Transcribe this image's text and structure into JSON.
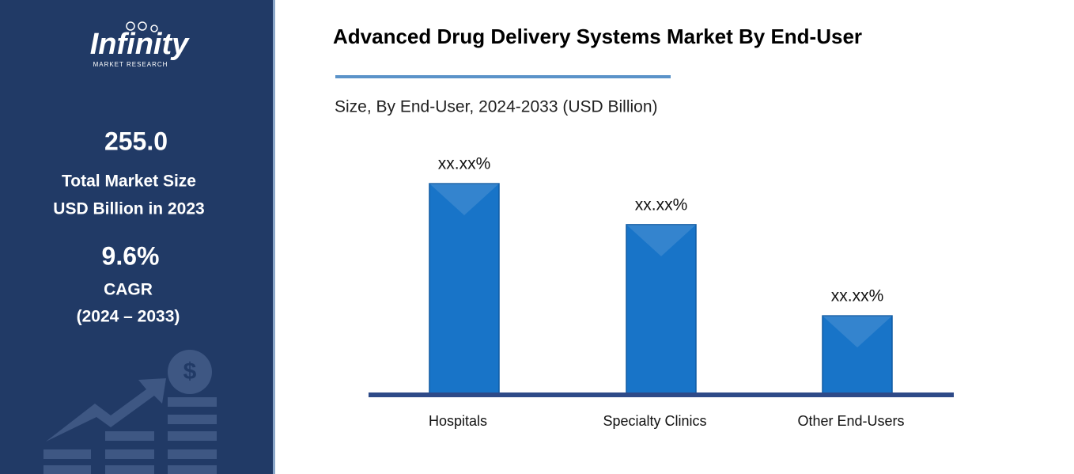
{
  "sidebar": {
    "logo": "Infinity",
    "logo_sub": "MARKET RESEARCH",
    "market_size": "255.0",
    "market_size_label_1": "Total Market Size",
    "market_size_label_2": "USD Billion in 2023",
    "cagr": "9.6%",
    "cagr_label": "CAGR",
    "cagr_period": "(2024 – 2033)"
  },
  "chart_data": {
    "type": "bar",
    "title": "Advanced Drug Delivery Systems Market By End-User",
    "subtitle": "Size, By End-User, 2024-2033 (USD Billion)",
    "categories": [
      "Hospitals",
      "Specialty Clinics",
      "Other End-Users"
    ],
    "values": [
      46,
      37,
      17
    ],
    "value_labels": [
      "xx.xx%",
      "xx.xx%",
      "xx.xx%"
    ],
    "color": "#1874c8",
    "ylim": [
      0,
      50
    ]
  }
}
